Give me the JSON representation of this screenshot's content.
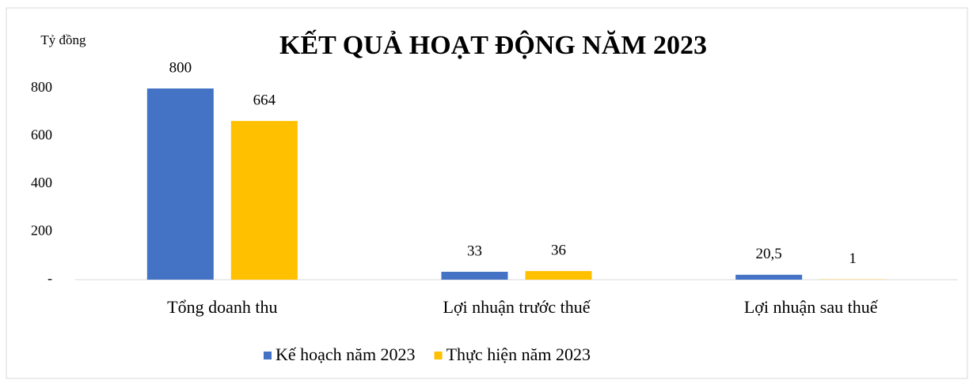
{
  "chart_data": {
    "type": "bar",
    "title": "KẾT QUẢ HOẠT ĐỘNG NĂM 2023",
    "y_label": "Tỷ đồng",
    "categories": [
      "Tổng doanh thu",
      "Lợi nhuận trước thuế",
      "Lợi nhuận sau thuế"
    ],
    "series": [
      {
        "name": "Kế hoạch năm 2023",
        "color": "#4472c4",
        "values": [
          800,
          33,
          20.5
        ],
        "value_labels": [
          "800",
          "33",
          "20,5"
        ]
      },
      {
        "name": "Thực hiện năm 2023",
        "color": "#ffc000",
        "values": [
          664,
          36,
          1
        ],
        "value_labels": [
          "664",
          "36",
          "1"
        ]
      }
    ],
    "ylim": [
      0,
      800
    ],
    "yticks": [
      {
        "value": 0,
        "label": "-"
      },
      200,
      400,
      600,
      800
    ],
    "grid": false,
    "legend": "bottom"
  }
}
